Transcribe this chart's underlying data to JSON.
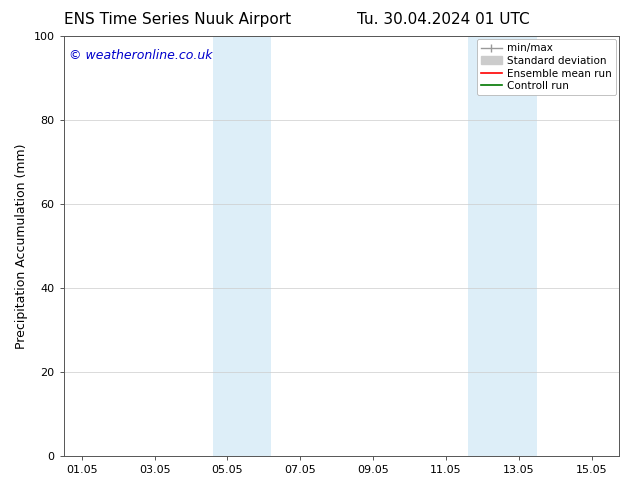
{
  "title_left": "ENS Time Series Nuuk Airport",
  "title_right": "Tu. 30.04.2024 01 UTC",
  "ylabel": "Precipitation Accumulation (mm)",
  "ylim": [
    0,
    100
  ],
  "yticks": [
    0,
    20,
    40,
    60,
    80,
    100
  ],
  "xtick_labels": [
    "01.05",
    "03.05",
    "05.05",
    "07.05",
    "09.05",
    "11.05",
    "13.05",
    "15.05"
  ],
  "xtick_positions": [
    0,
    2,
    4,
    6,
    8,
    10,
    12,
    14
  ],
  "xlim": [
    -0.5,
    14.75
  ],
  "shaded_regions": [
    {
      "x_start": 3.6,
      "x_end": 5.2,
      "color": "#ddeef8"
    },
    {
      "x_start": 10.6,
      "x_end": 12.5,
      "color": "#ddeef8"
    }
  ],
  "watermark_text": "© weatheronline.co.uk",
  "watermark_color": "#0000cc",
  "watermark_fontsize": 9,
  "legend_items": [
    {
      "label": "min/max",
      "color": "#999999",
      "lw": 1.0
    },
    {
      "label": "Standard deviation",
      "color": "#cccccc",
      "lw": 5
    },
    {
      "label": "Ensemble mean run",
      "color": "#ff0000",
      "lw": 1.2
    },
    {
      "label": "Controll run",
      "color": "#007700",
      "lw": 1.2
    }
  ],
  "bg_color": "#ffffff",
  "plot_bg_color": "#ffffff",
  "grid_color": "#cccccc",
  "tick_label_fontsize": 8,
  "axis_label_fontsize": 9,
  "title_fontsize": 11
}
